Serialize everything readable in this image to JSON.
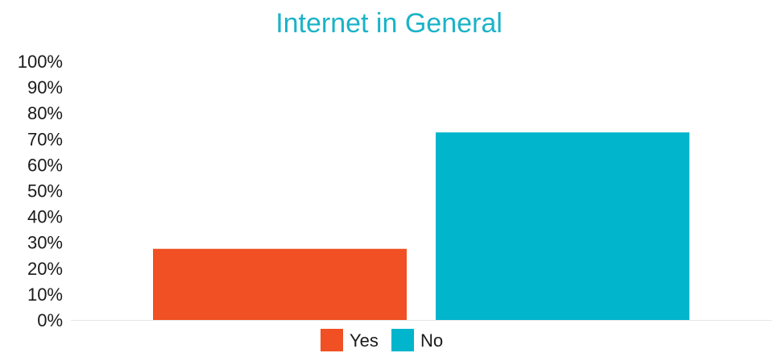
{
  "chart_data": {
    "type": "bar",
    "title": "Internet in General",
    "xlabel": "",
    "ylabel": "",
    "ylim": [
      0,
      100
    ],
    "y_ticks": [
      "0%",
      "10%",
      "20%",
      "30%",
      "40%",
      "50%",
      "60%",
      "70%",
      "80%",
      "90%",
      "100%"
    ],
    "y_tick_values": [
      0,
      10,
      20,
      30,
      40,
      50,
      60,
      70,
      80,
      90,
      100
    ],
    "grid": false,
    "legend_position": "bottom",
    "series": [
      {
        "name": "Yes",
        "value": 27.5,
        "color": "#f05023"
      },
      {
        "name": "No",
        "value": 72.5,
        "color": "#00b5cc"
      }
    ]
  }
}
